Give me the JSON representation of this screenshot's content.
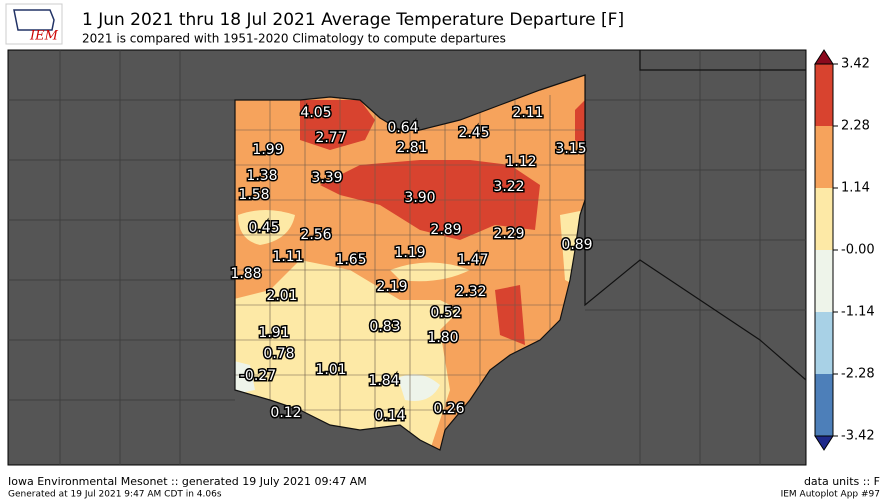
{
  "header": {
    "logo": "IEM",
    "title": "1 Jun 2021 thru 18 Jul 2021 Average Temperature Departure [F]",
    "subtitle": "2021 is compared with 1951-2020 Climatology to compute departures"
  },
  "stations": [
    "4.05",
    "2.77",
    "0.64",
    "2.45",
    "2.11",
    "1.99",
    "2.81",
    "1.12",
    "3.15",
    "1.38",
    "3.39",
    "3.22",
    "1.58",
    "3.90",
    "0.45",
    "2.56",
    "2.89",
    "2.29",
    "0.89",
    "1.11",
    "1.65",
    "1.19",
    "1.47",
    "1.88",
    "2.19",
    "2.32",
    "2.01",
    "0.52",
    "1.91",
    "0.83",
    "1.80",
    "0.78",
    "1.01",
    "1.84",
    "-0.27",
    "0.12",
    "0.14",
    "0.26"
  ],
  "colorbar": {
    "ticks": [
      "3.42",
      "2.28",
      "1.14",
      "-0.00",
      "-1.14",
      "-2.28",
      "-3.42"
    ]
  },
  "footer": {
    "source": "Iowa Environmental Mesonet :: generated 19 July 2021 09:47 AM",
    "generated": "Generated at 19 Jul 2021 9:47 AM CDT in 4.06s",
    "units": "data units :: F",
    "app": "IEM Autoplot App #97"
  }
}
